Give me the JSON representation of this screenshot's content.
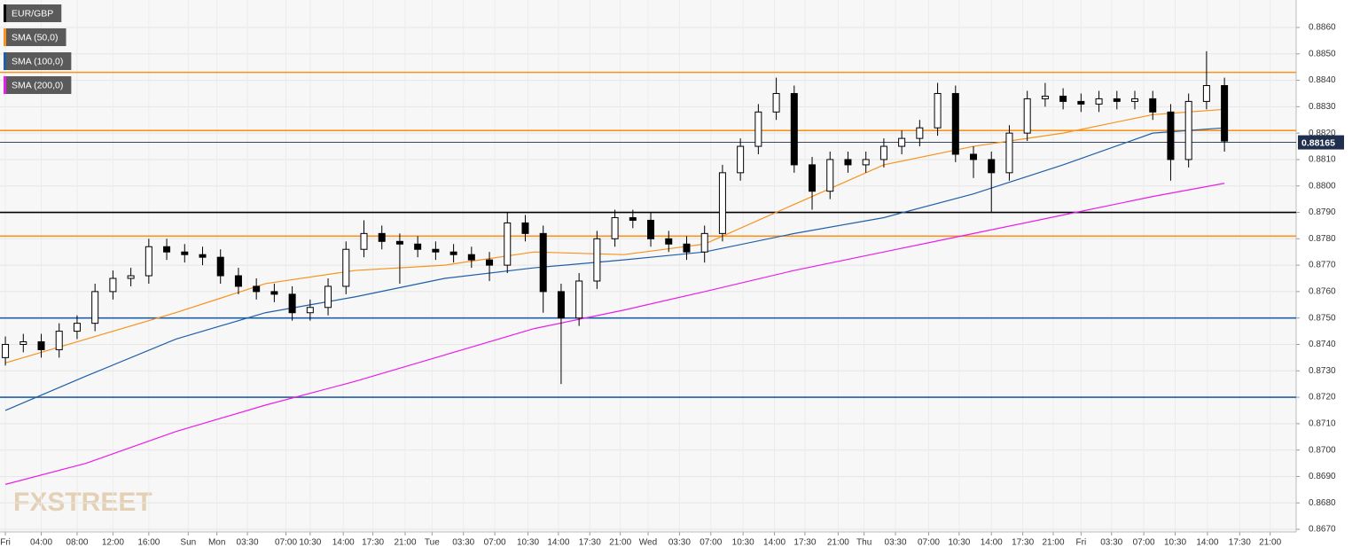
{
  "chart_data": {
    "type": "candlestick",
    "legend": [
      {
        "name": "EUR/GBP",
        "color": "#000000"
      },
      {
        "name": "SMA (50,0)",
        "color": "#f7931e"
      },
      {
        "name": "SMA (100,0)",
        "color": "#1f5fa8"
      },
      {
        "name": "SMA (200,0)",
        "color": "#e81ee8"
      }
    ],
    "watermark": "FXSTREET",
    "xlim": [
      -0.6,
      144
    ],
    "ylim": [
      0.8669,
      0.88704
    ],
    "xticks": [
      {
        "value": 0,
        "label": "Fri"
      },
      {
        "value": 4,
        "label": "04:00"
      },
      {
        "value": 8,
        "label": "08:00"
      },
      {
        "value": 12,
        "label": "12:00"
      },
      {
        "value": 16,
        "label": "16:00"
      },
      {
        "value": 20.4,
        "label": "Sun"
      },
      {
        "value": 23.6,
        "label": "Mon"
      },
      {
        "value": 27,
        "label": "03:30"
      },
      {
        "value": 31.3,
        "label": "07:00"
      },
      {
        "value": 34,
        "label": "10:30"
      },
      {
        "value": 37.7,
        "label": "14:00"
      },
      {
        "value": 41,
        "label": "17:30"
      },
      {
        "value": 44.6,
        "label": "21:00"
      },
      {
        "value": 47.6,
        "label": "Tue"
      },
      {
        "value": 51.1,
        "label": "03:30"
      },
      {
        "value": 54.6,
        "label": "07:00"
      },
      {
        "value": 58.3,
        "label": "10:30"
      },
      {
        "value": 61.7,
        "label": "14:00"
      },
      {
        "value": 65.2,
        "label": "17:30"
      },
      {
        "value": 68.6,
        "label": "21:00"
      },
      {
        "value": 71.7,
        "label": "Wed"
      },
      {
        "value": 75.2,
        "label": "03:30"
      },
      {
        "value": 78.7,
        "label": "07:00"
      },
      {
        "value": 82.3,
        "label": "10:30"
      },
      {
        "value": 85.8,
        "label": "14:00"
      },
      {
        "value": 89.2,
        "label": "17:30"
      },
      {
        "value": 92.9,
        "label": "21:00"
      },
      {
        "value": 95.8,
        "label": "Thu"
      },
      {
        "value": 99.3,
        "label": "03:30"
      },
      {
        "value": 103,
        "label": "07:00"
      },
      {
        "value": 106.4,
        "label": "10:30"
      },
      {
        "value": 110,
        "label": "14:00"
      },
      {
        "value": 113.5,
        "label": "17:30"
      },
      {
        "value": 116.9,
        "label": "21:00"
      },
      {
        "value": 120,
        "label": "Fri"
      },
      {
        "value": 123.4,
        "label": "03:30"
      },
      {
        "value": 127,
        "label": "07:00"
      },
      {
        "value": 130.5,
        "label": "10:30"
      },
      {
        "value": 134.1,
        "label": "14:00"
      },
      {
        "value": 137.7,
        "label": "17:30"
      },
      {
        "value": 141.1,
        "label": "21:00"
      }
    ],
    "yticks": [
      {
        "value": 0.867,
        "label": "0.8670"
      },
      {
        "value": 0.868,
        "label": "0.8680"
      },
      {
        "value": 0.869,
        "label": "0.8690"
      },
      {
        "value": 0.87,
        "label": "0.8700"
      },
      {
        "value": 0.871,
        "label": "0.8710"
      },
      {
        "value": 0.872,
        "label": "0.8720"
      },
      {
        "value": 0.873,
        "label": "0.8730"
      },
      {
        "value": 0.874,
        "label": "0.8740"
      },
      {
        "value": 0.875,
        "label": "0.8750"
      },
      {
        "value": 0.876,
        "label": "0.8760"
      },
      {
        "value": 0.877,
        "label": "0.8770"
      },
      {
        "value": 0.878,
        "label": "0.8780"
      },
      {
        "value": 0.879,
        "label": "0.8790"
      },
      {
        "value": 0.88,
        "label": "0.8800"
      },
      {
        "value": 0.881,
        "label": "0.8810"
      },
      {
        "value": 0.882,
        "label": "0.8820"
      },
      {
        "value": 0.883,
        "label": "0.8830"
      },
      {
        "value": 0.884,
        "label": "0.8840"
      },
      {
        "value": 0.885,
        "label": "0.8850"
      },
      {
        "value": 0.886,
        "label": "0.8860"
      }
    ],
    "grid": true,
    "candles": {
      "x": [
        0,
        2,
        4,
        6,
        8,
        10,
        12,
        14,
        16,
        18,
        20,
        22,
        24,
        26,
        28,
        30,
        32,
        34,
        36,
        38,
        40,
        42,
        44,
        46,
        48,
        50,
        52,
        54,
        56,
        58,
        60,
        62,
        64,
        66,
        68,
        70,
        72,
        74,
        76,
        78,
        80,
        82,
        84,
        86,
        88,
        90,
        92,
        94,
        96,
        98,
        100,
        102,
        104,
        106,
        108,
        110,
        112,
        114,
        116,
        118,
        120,
        122,
        124,
        126,
        128,
        130,
        132,
        134,
        136
      ],
      "open": [
        0.8735,
        0.874,
        0.8741,
        0.8738,
        0.8745,
        0.8748,
        0.876,
        0.8765,
        0.8766,
        0.8777,
        0.8775,
        0.8774,
        0.8773,
        0.8766,
        0.8762,
        0.876,
        0.8759,
        0.8752,
        0.8754,
        0.8762,
        0.8776,
        0.8782,
        0.8779,
        0.8778,
        0.8776,
        0.8775,
        0.8774,
        0.8772,
        0.877,
        0.8786,
        0.8782,
        0.876,
        0.875,
        0.8764,
        0.878,
        0.8788,
        0.8787,
        0.878,
        0.8778,
        0.8775,
        0.8782,
        0.8805,
        0.8815,
        0.8828,
        0.8835,
        0.8808,
        0.8798,
        0.881,
        0.8808,
        0.881,
        0.8815,
        0.8818,
        0.8822,
        0.8835,
        0.8812,
        0.881,
        0.8805,
        0.882,
        0.8833,
        0.8834,
        0.8832,
        0.8831,
        0.8833,
        0.8832,
        0.8833,
        0.8828,
        0.881,
        0.8832,
        0.8838
      ],
      "high": [
        0.8743,
        0.8744,
        0.8744,
        0.8748,
        0.8751,
        0.8763,
        0.8768,
        0.8769,
        0.878,
        0.878,
        0.8778,
        0.8777,
        0.8776,
        0.8769,
        0.8765,
        0.8763,
        0.8762,
        0.8757,
        0.8765,
        0.8779,
        0.8787,
        0.8785,
        0.8782,
        0.8781,
        0.8779,
        0.8778,
        0.8777,
        0.8775,
        0.879,
        0.8789,
        0.8785,
        0.8763,
        0.8767,
        0.8783,
        0.8791,
        0.8791,
        0.879,
        0.8783,
        0.8781,
        0.8785,
        0.8808,
        0.8818,
        0.8831,
        0.8841,
        0.8838,
        0.8811,
        0.8813,
        0.8813,
        0.8813,
        0.8818,
        0.8821,
        0.8825,
        0.8839,
        0.8838,
        0.8815,
        0.8813,
        0.8823,
        0.8836,
        0.8839,
        0.8837,
        0.8835,
        0.8836,
        0.8836,
        0.8836,
        0.8836,
        0.8831,
        0.8835,
        0.8851,
        0.8841
      ],
      "low": [
        0.8732,
        0.8737,
        0.8735,
        0.8735,
        0.8742,
        0.8745,
        0.8757,
        0.8762,
        0.8763,
        0.8772,
        0.8771,
        0.877,
        0.8763,
        0.8759,
        0.8757,
        0.8756,
        0.8749,
        0.8749,
        0.8751,
        0.8759,
        0.8773,
        0.8776,
        0.8763,
        0.8773,
        0.8772,
        0.8771,
        0.8769,
        0.8764,
        0.8767,
        0.8779,
        0.8752,
        0.8725,
        0.8747,
        0.8761,
        0.8777,
        0.8784,
        0.8777,
        0.8775,
        0.8772,
        0.8771,
        0.8779,
        0.8802,
        0.8812,
        0.8825,
        0.8805,
        0.8791,
        0.8795,
        0.8805,
        0.8805,
        0.8807,
        0.8812,
        0.8815,
        0.8819,
        0.8809,
        0.8803,
        0.879,
        0.8802,
        0.8817,
        0.883,
        0.8829,
        0.8828,
        0.8828,
        0.8829,
        0.8829,
        0.8825,
        0.8802,
        0.8807,
        0.8829,
        0.8813
      ],
      "close": [
        0.874,
        0.8741,
        0.8738,
        0.8745,
        0.8748,
        0.876,
        0.8765,
        0.8766,
        0.8777,
        0.8775,
        0.8774,
        0.8773,
        0.8766,
        0.8762,
        0.876,
        0.8759,
        0.8752,
        0.8754,
        0.8762,
        0.8776,
        0.8782,
        0.8779,
        0.8778,
        0.8776,
        0.8775,
        0.8774,
        0.8772,
        0.877,
        0.8786,
        0.8782,
        0.876,
        0.875,
        0.8764,
        0.878,
        0.8788,
        0.8787,
        0.878,
        0.8778,
        0.8775,
        0.8782,
        0.8805,
        0.8815,
        0.8828,
        0.8835,
        0.8808,
        0.8798,
        0.881,
        0.8808,
        0.881,
        0.8815,
        0.8818,
        0.8822,
        0.8835,
        0.8812,
        0.881,
        0.8805,
        0.882,
        0.8833,
        0.8834,
        0.8832,
        0.8831,
        0.8833,
        0.8832,
        0.8833,
        0.8828,
        0.881,
        0.8832,
        0.8838,
        0.8817
      ]
    },
    "series": [
      {
        "name": "SMA (50,0)",
        "color": "#f7931e",
        "x": [
          0,
          9,
          19,
          29,
          39,
          49,
          59,
          69,
          78,
          88,
          98,
          108,
          118,
          128,
          136
        ],
        "values": [
          0.8733,
          0.8742,
          0.8752,
          0.8763,
          0.8768,
          0.877,
          0.8775,
          0.8774,
          0.8778,
          0.8793,
          0.8808,
          0.8815,
          0.882,
          0.8827,
          0.8829
        ]
      },
      {
        "name": "SMA (100,0)",
        "color": "#1f5fa8",
        "x": [
          0,
          9,
          19,
          29,
          39,
          49,
          59,
          69,
          78,
          88,
          98,
          108,
          118,
          128,
          136
        ],
        "values": [
          0.8715,
          0.8728,
          0.8742,
          0.8752,
          0.8758,
          0.8765,
          0.8769,
          0.8772,
          0.8775,
          0.8782,
          0.8788,
          0.8797,
          0.8808,
          0.882,
          0.8822
        ]
      },
      {
        "name": "SMA (200,0)",
        "color": "#e81ee8",
        "x": [
          0,
          9,
          19,
          29,
          39,
          49,
          59,
          69,
          78,
          88,
          98,
          108,
          118,
          128,
          136
        ],
        "values": [
          0.8687,
          0.8695,
          0.8707,
          0.8717,
          0.8726,
          0.8736,
          0.8746,
          0.8753,
          0.876,
          0.8768,
          0.8775,
          0.8782,
          0.8789,
          0.8796,
          0.8801
        ]
      }
    ],
    "levels": [
      {
        "value": 0.8843,
        "color": "#f7931e"
      },
      {
        "value": 0.8821,
        "color": "#f7931e"
      },
      {
        "value": 0.879,
        "color": "#000000"
      },
      {
        "value": 0.8781,
        "color": "#f7931e"
      },
      {
        "value": 0.875,
        "color": "#1f5fa8"
      },
      {
        "value": 0.872,
        "color": "#1f5fa8"
      }
    ],
    "current_price": 0.88165
  }
}
